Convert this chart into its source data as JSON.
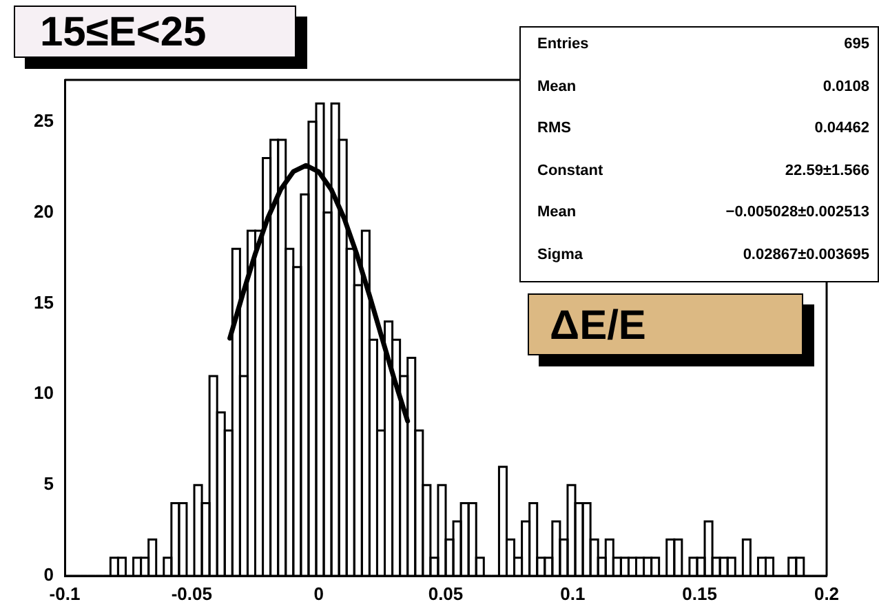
{
  "chart_data": {
    "type": "histogram",
    "title": "15≤E<25",
    "subtitle": "ΔE/E",
    "annotations": [
      "Entries",
      "695",
      "Mean",
      "0.0108",
      "RMS",
      "0.04462",
      "Constant",
      "22.59±1.566",
      "Mean",
      "−0.005028±0.002513",
      "Sigma",
      "0.02867±0.003695"
    ],
    "series": [
      {
        "type": "histogram",
        "color": "#000000",
        "bins": [
          -0.1,
          -0.097,
          -0.094,
          -0.091,
          -0.088,
          -0.085,
          -0.082,
          -0.079,
          -0.076,
          -0.073,
          -0.07,
          -0.067,
          -0.064,
          -0.061,
          -0.058,
          -0.055,
          -0.052,
          -0.049,
          -0.046,
          -0.043,
          -0.04,
          -0.037,
          -0.034,
          -0.031,
          -0.028,
          -0.025,
          -0.022,
          -0.019,
          -0.016,
          -0.013,
          -0.01,
          -0.007,
          -0.004,
          -0.001,
          0.002,
          0.005,
          0.008,
          0.011,
          0.014,
          0.017,
          0.02,
          0.023,
          0.026,
          0.029,
          0.032,
          0.035,
          0.038,
          0.041,
          0.044,
          0.047,
          0.05,
          0.053,
          0.056,
          0.059,
          0.062,
          0.065,
          0.068,
          0.071,
          0.074,
          0.077,
          0.08,
          0.083,
          0.086,
          0.089,
          0.092,
          0.095,
          0.098,
          0.101,
          0.104,
          0.107,
          0.11,
          0.113,
          0.116,
          0.119,
          0.122,
          0.125,
          0.128,
          0.131,
          0.134,
          0.137,
          0.14,
          0.143,
          0.146,
          0.149,
          0.152,
          0.155,
          0.158,
          0.161,
          0.164,
          0.167,
          0.17,
          0.173,
          0.176,
          0.179,
          0.182,
          0.185,
          0.188,
          0.191,
          0.194,
          0.197,
          0.2
        ],
        "values": [
          0,
          0,
          0,
          0,
          0,
          0,
          1,
          1,
          0,
          1,
          1,
          2,
          0,
          1,
          4,
          4,
          0,
          5,
          4,
          11,
          9,
          8,
          18,
          11,
          19,
          19,
          23,
          24,
          24,
          18,
          17,
          21,
          25,
          26,
          20,
          26,
          24,
          18,
          16,
          19,
          13,
          8,
          14,
          13,
          11,
          12,
          8,
          5,
          1,
          5,
          2,
          3,
          4,
          4,
          1,
          0,
          0,
          6,
          2,
          1,
          3,
          4,
          1,
          1,
          3,
          2,
          5,
          4,
          4,
          2,
          1,
          2,
          1,
          1,
          1,
          1,
          1,
          1,
          0,
          2,
          2,
          0,
          1,
          1,
          3,
          1,
          1,
          1,
          0,
          2,
          0,
          1,
          1,
          0,
          0,
          1,
          1,
          0,
          0,
          0
        ]
      },
      {
        "type": "line",
        "color": "#000000",
        "x": [
          -0.035,
          -0.03,
          -0.025,
          -0.02,
          -0.015,
          -0.01,
          -0.005,
          0,
          0.005,
          0.01,
          0.015,
          0.02,
          0.025,
          0.03,
          0.035
        ],
        "values": [
          13.08,
          15.46,
          17.72,
          19.71,
          21.26,
          22.25,
          22.59,
          22.24,
          21.25,
          19.69,
          17.7,
          15.43,
          13.05,
          10.71,
          8.52
        ]
      }
    ],
    "xlim": [
      -0.1,
      0.2
    ],
    "xticks": [
      -0.1,
      -0.05,
      0,
      0.05,
      0.1,
      0.15,
      0.2
    ],
    "ylim": [
      0,
      27.3
    ],
    "yticks": [
      0,
      5,
      10,
      15,
      20,
      25
    ],
    "grid": false,
    "legend": false,
    "marker": "none",
    "line_style": "solid"
  }
}
